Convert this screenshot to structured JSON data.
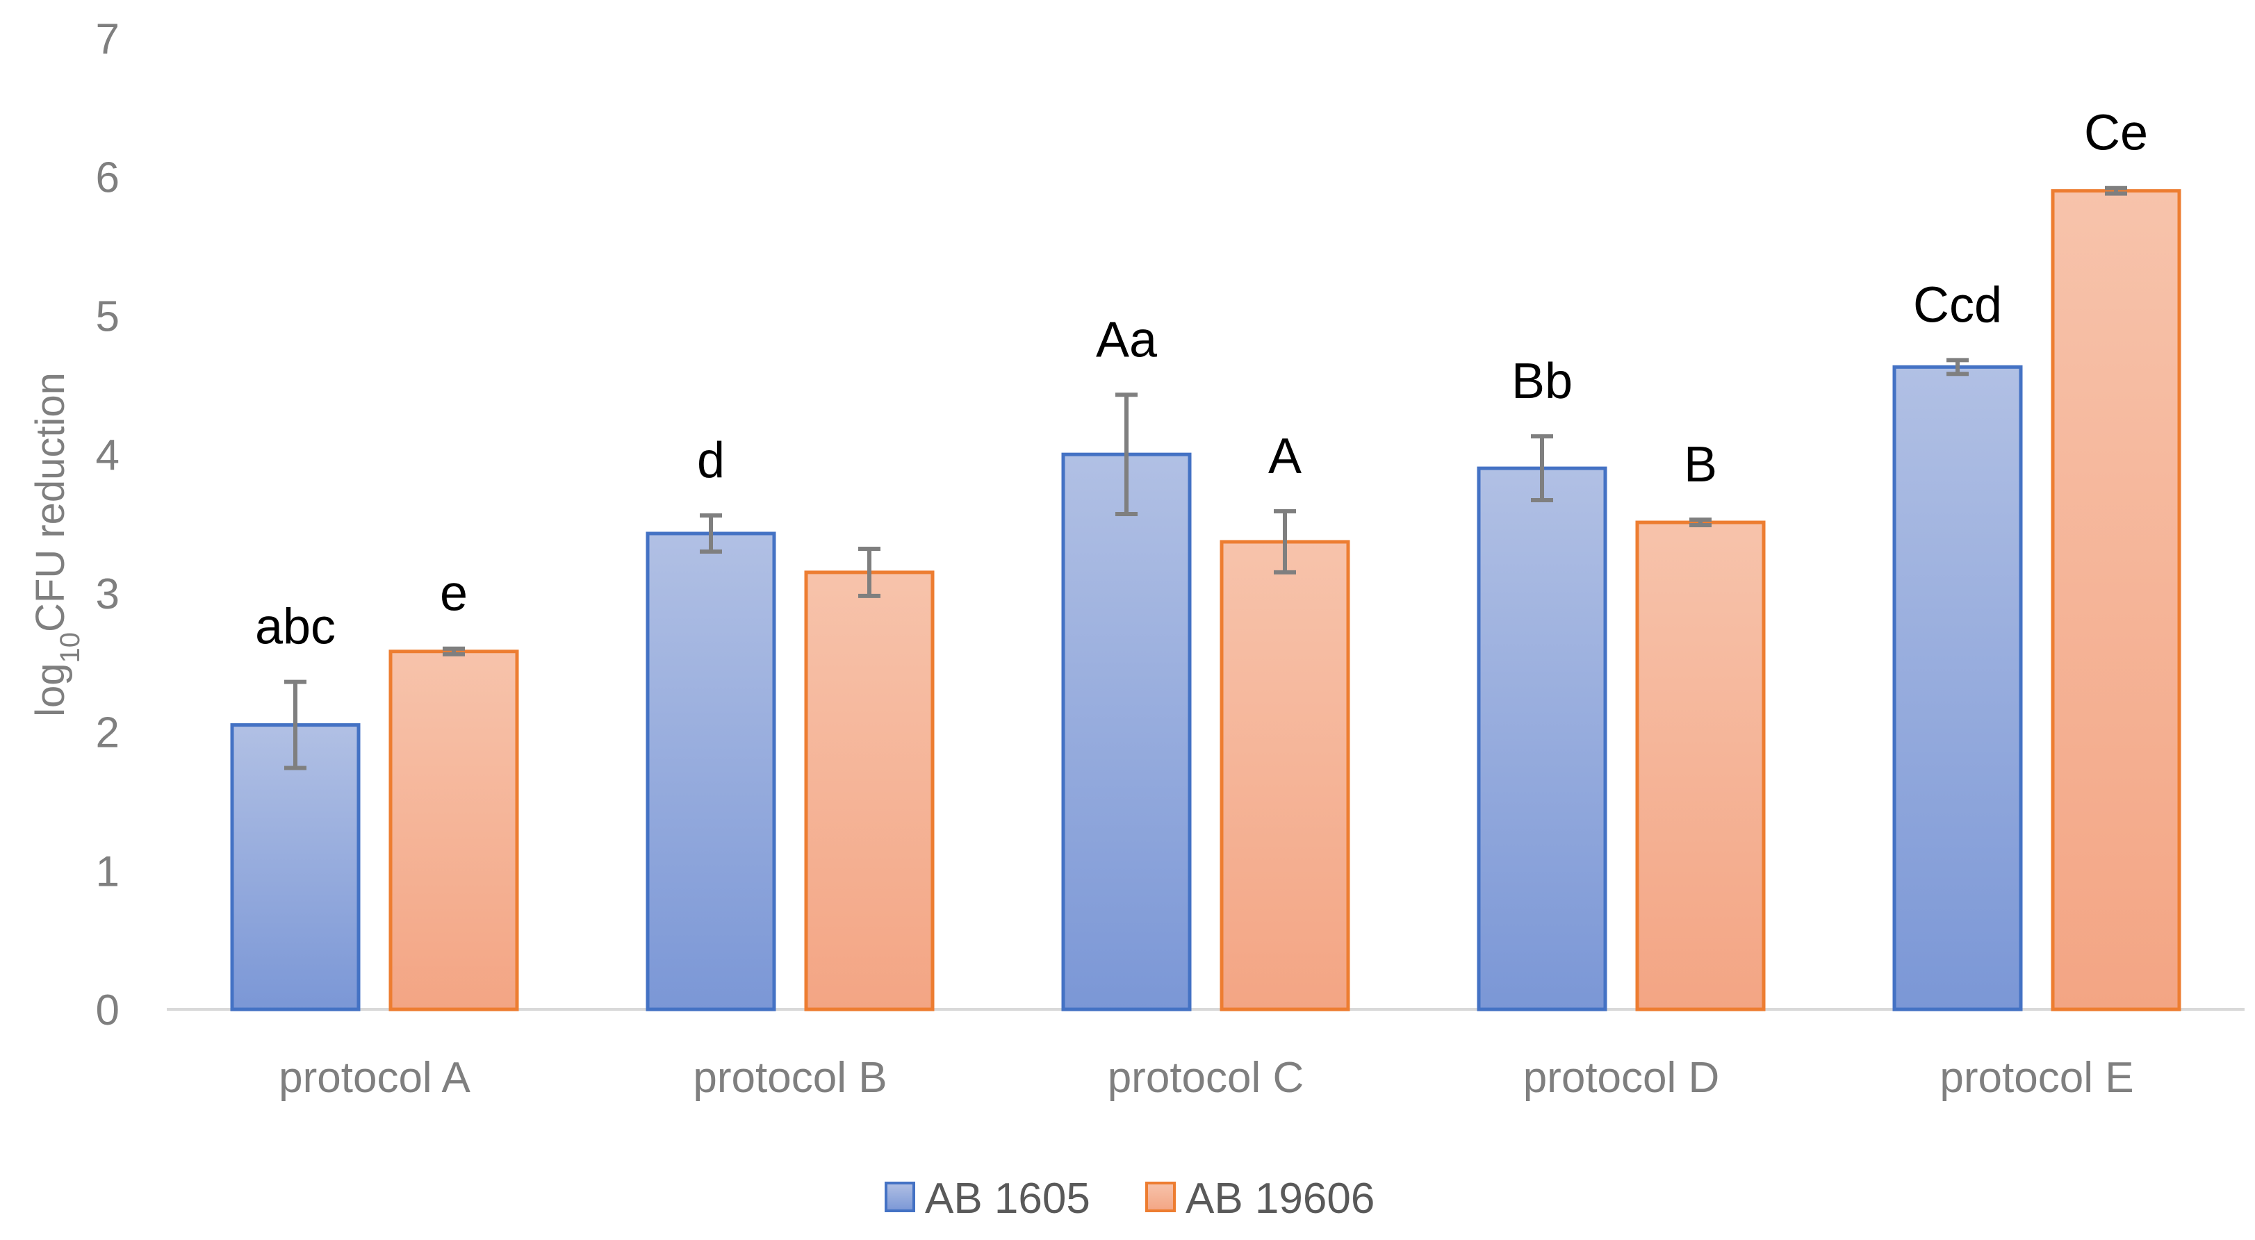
{
  "chart_data": {
    "type": "bar",
    "title": "",
    "xlabel": "",
    "ylabel": {
      "prefix": "log",
      "subscript": "10",
      "suffix": "CFU reduction"
    },
    "ylim": [
      0,
      7
    ],
    "yticks": [
      "0",
      "1",
      "2",
      "3",
      "4",
      "5",
      "6",
      "7"
    ],
    "grid": false,
    "legend_position": "bottom",
    "categories": [
      "protocol A",
      "protocol B",
      "protocol C",
      "protocol D",
      "protocol E"
    ],
    "series": [
      {
        "name": "AB 1605",
        "color_border": "#4472c4",
        "color_top": "#b1c0e4",
        "color_bottom": "#7b97d6",
        "values": [
          2.05,
          3.43,
          4.0,
          3.9,
          4.63
        ],
        "errors": [
          0.31,
          0.13,
          0.43,
          0.23,
          0.05
        ],
        "labels": [
          "abc",
          "d",
          "Aa",
          "Bb",
          "Ccd"
        ]
      },
      {
        "name": "AB 19606",
        "color_border": "#ed7d31",
        "color_top": "#f7c3ab",
        "color_bottom": "#f3a584",
        "values": [
          2.58,
          3.15,
          3.37,
          3.51,
          5.9
        ],
        "errors": [
          0.02,
          0.17,
          0.22,
          0.02,
          0.02
        ],
        "labels": [
          "e",
          "",
          "A",
          "B",
          "Ce"
        ]
      }
    ]
  }
}
